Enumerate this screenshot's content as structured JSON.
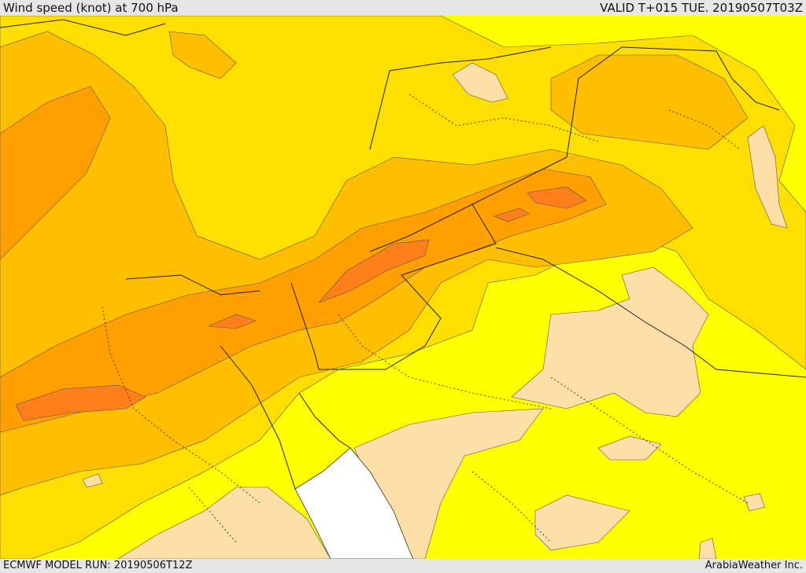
{
  "header": {
    "title": "Wind speed (knot) at 700 hPa",
    "valid": "VALID T+015 TUE. 20190507T03Z"
  },
  "footer": {
    "model_run": "ECMWF MODEL RUN: 20190506T12Z",
    "credit": "ArabiaWeather Inc."
  },
  "colors": {
    "band_lt10": "#ffff00",
    "band_10_15": "#ffdf00",
    "band_15_20": "#ffbf00",
    "band_20_25": "#ff9f00",
    "band_25_30": "#ff7f1a",
    "calm": "#ffdfa8",
    "no_data": "#ffffff",
    "border": "#222222"
  }
}
